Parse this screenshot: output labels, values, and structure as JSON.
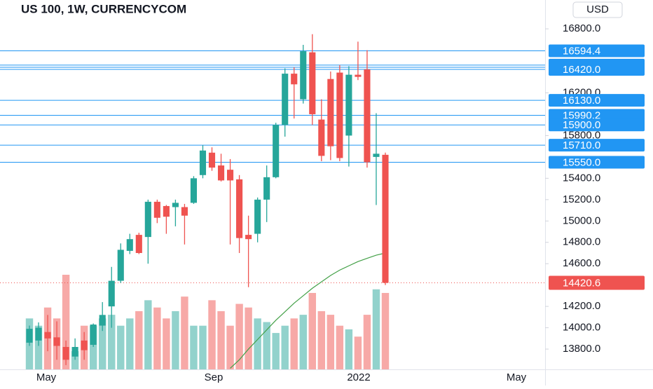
{
  "chart_data": {
    "type": "candlestick",
    "title": "US 100, 1W, CURRENCYCOM",
    "currency": "USD",
    "up_color": "#26a69a",
    "down_color": "#ef5350",
    "level_color": "#2196f3",
    "ma_color": "#43a047",
    "candles": {
      "open": [
        13860,
        13880,
        13960,
        13910,
        13820,
        13730,
        13880,
        13840,
        14020,
        14200,
        14440,
        14720,
        14870,
        14850,
        15180,
        15140,
        15130,
        15130,
        15170,
        15430,
        15640,
        15520,
        15480,
        15390,
        14870,
        14880,
        15200,
        15410,
        15900,
        16380,
        16140,
        16580,
        15950,
        16330,
        16390,
        15800,
        16370,
        16420,
        15600,
        15620
      ],
      "high": [
        14020,
        14050,
        14120,
        14060,
        13880,
        13900,
        13960,
        14040,
        14240,
        14570,
        14790,
        14880,
        14890,
        15200,
        15200,
        15150,
        15200,
        15160,
        15420,
        15710,
        15690,
        15630,
        15580,
        15430,
        15050,
        15220,
        15520,
        15920,
        16430,
        16440,
        16650,
        16750,
        16140,
        16400,
        16460,
        16450,
        16680,
        16600,
        16010,
        15640
      ],
      "low": [
        13830,
        13830,
        13780,
        13700,
        13650,
        13700,
        13700,
        13820,
        13970,
        14000,
        14420,
        14690,
        14690,
        14600,
        14980,
        14880,
        14950,
        14780,
        15160,
        15400,
        15470,
        15370,
        14780,
        14700,
        14380,
        14800,
        14990,
        15400,
        15790,
        15960,
        16100,
        15900,
        15560,
        15570,
        15560,
        15510,
        16320,
        15500,
        15150,
        14400
      ],
      "close": [
        13990,
        14000,
        13900,
        13830,
        13700,
        13820,
        13790,
        14030,
        14120,
        14440,
        14730,
        14830,
        14700,
        15180,
        15030,
        15040,
        15170,
        15050,
        15400,
        15660,
        15500,
        15380,
        15380,
        14840,
        14830,
        15200,
        15410,
        15900,
        16380,
        16280,
        16590,
        16000,
        15610,
        15700,
        15590,
        16370,
        16350,
        15550,
        15630,
        14420.6
      ]
    },
    "volume": [
      70,
      60,
      85,
      70,
      130,
      25,
      60,
      60,
      70,
      75,
      60,
      70,
      80,
      95,
      85,
      70,
      80,
      100,
      60,
      60,
      95,
      80,
      60,
      90,
      85,
      70,
      65,
      50,
      60,
      70,
      75,
      105,
      80,
      75,
      60,
      55,
      45,
      75,
      110,
      105
    ],
    "moving_average": [
      null,
      null,
      null,
      null,
      null,
      null,
      null,
      null,
      null,
      null,
      null,
      null,
      null,
      null,
      null,
      null,
      null,
      null,
      null,
      null,
      null,
      null,
      13620,
      13700,
      13800,
      13890,
      13980,
      14070,
      14150,
      14230,
      14300,
      14370,
      14430,
      14490,
      14540,
      14580,
      14620,
      14650,
      14680,
      14700
    ],
    "ylim": [
      13610,
      17070
    ],
    "yticks": [
      {
        "value": 13800,
        "label": "13800.0"
      },
      {
        "value": 14000,
        "label": "14000.0"
      },
      {
        "value": 14200,
        "label": "14200.0"
      },
      {
        "value": 14600,
        "label": "14600.0"
      },
      {
        "value": 14800,
        "label": "14800.0"
      },
      {
        "value": 15000,
        "label": "15000.0"
      },
      {
        "value": 15200,
        "label": "15200.0"
      },
      {
        "value": 15400,
        "label": "15400.0"
      },
      {
        "value": 15800,
        "label": "15800.0"
      },
      {
        "value": 16200,
        "label": "16200.0"
      },
      {
        "value": 16800,
        "label": "16800.0"
      }
    ],
    "levels": [
      {
        "value": 16594.4,
        "label": "16594.4"
      },
      {
        "value": 16460,
        "label": "16460.0"
      },
      {
        "value": 16439.8,
        "label": "16439.8"
      },
      {
        "value": 16420,
        "label": "16420.0"
      },
      {
        "value": 16130,
        "label": "16130.0"
      },
      {
        "value": 15990.2,
        "label": "15990.2"
      },
      {
        "value": 15900,
        "label": "15900.0"
      },
      {
        "value": 15710,
        "label": "15710.0"
      },
      {
        "value": 15550,
        "label": "15550.0"
      }
    ],
    "last_price": {
      "value": 14420.6,
      "label": "14420.6"
    },
    "xtick_labels": [
      "May",
      "Sep",
      "2022",
      "May"
    ]
  }
}
